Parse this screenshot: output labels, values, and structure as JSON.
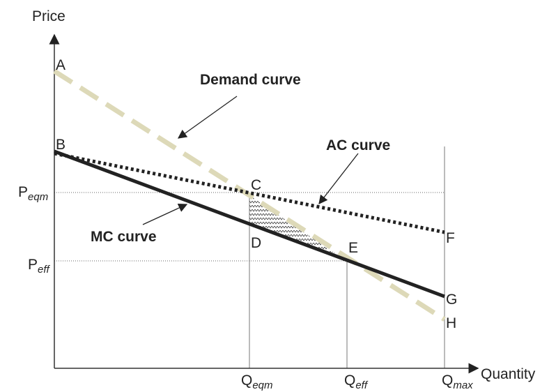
{
  "axes": {
    "y_label": "Price",
    "x_label": "Quantity"
  },
  "points": [
    "A",
    "B",
    "C",
    "D",
    "E",
    "F",
    "G",
    "H"
  ],
  "curves": {
    "demand": "Demand curve",
    "ac": "AC curve",
    "mc": "MC curve"
  },
  "price_levels": [
    {
      "main": "P",
      "sub": "eqm"
    },
    {
      "main": "P",
      "sub": "eff"
    }
  ],
  "quantity_levels": [
    {
      "main": "Q",
      "sub": "eqm"
    },
    {
      "main": "Q",
      "sub": "eff"
    },
    {
      "main": "Q",
      "sub": "max"
    }
  ]
}
